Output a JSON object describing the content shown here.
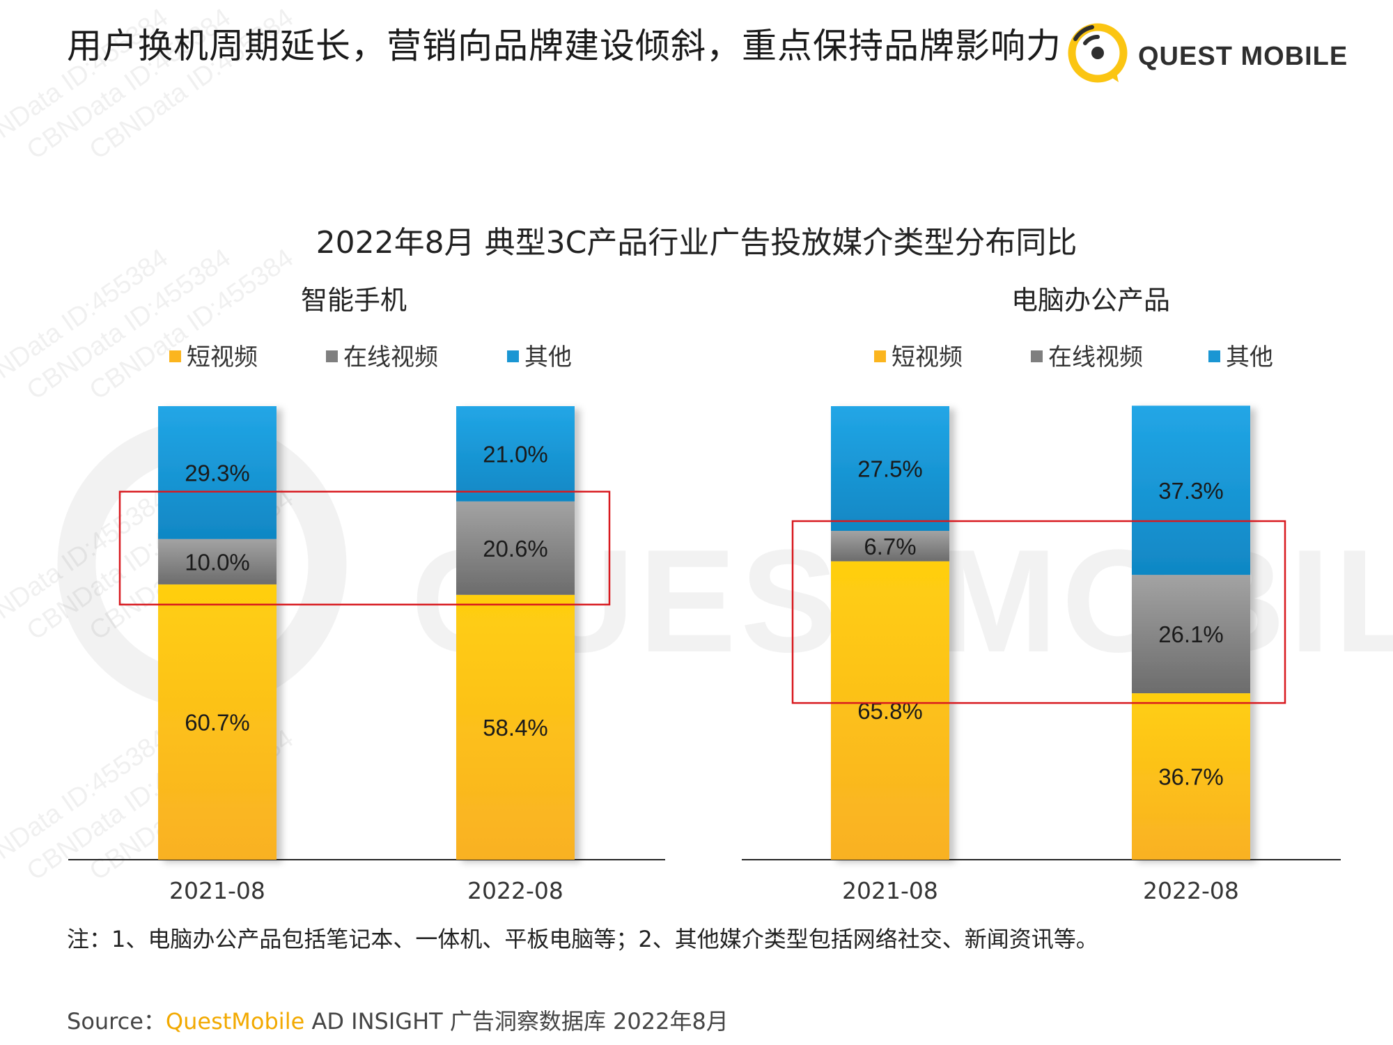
{
  "headline": "用户换机周期延长，营销向品牌建设倾斜，重点保持品牌影响力",
  "logo": {
    "text": "QUEST MOBILE",
    "watermark_text": "QUESTMOBILE",
    "tile_text": "CBNData ID:455384"
  },
  "colors": {
    "short_video": "#fbb51e",
    "online_video": "#7f7f7f",
    "other": "#1a96d3",
    "highlight_box": "#d8181e",
    "axis": "#222222"
  },
  "chart_title": "2022年8月 典型3C产品行业广告投放媒介类型分布同比",
  "legend": [
    "短视频",
    "在线视频",
    "其他"
  ],
  "chart_data": [
    {
      "type": "bar",
      "stacked": true,
      "title": "智能手机",
      "categories": [
        "2021-08",
        "2022-08"
      ],
      "series": [
        {
          "name": "短视频",
          "values": [
            60.7,
            58.4
          ]
        },
        {
          "name": "在线视频",
          "values": [
            10.0,
            20.6
          ]
        },
        {
          "name": "其他",
          "values": [
            29.3,
            21.0
          ]
        }
      ],
      "labels": [
        [
          "60.7%",
          "58.4%"
        ],
        [
          "10.0%",
          "20.6%"
        ],
        [
          "29.3%",
          "21.0%"
        ]
      ],
      "ylim": [
        0,
        100
      ],
      "grid": false,
      "legend_position": "top",
      "highlighted_series": "在线视频"
    },
    {
      "type": "bar",
      "stacked": true,
      "title": "电脑办公产品",
      "categories": [
        "2021-08",
        "2022-08"
      ],
      "series": [
        {
          "name": "短视频",
          "values": [
            65.8,
            36.7
          ]
        },
        {
          "name": "在线视频",
          "values": [
            6.7,
            26.1
          ]
        },
        {
          "name": "其他",
          "values": [
            27.5,
            37.3
          ]
        }
      ],
      "labels": [
        [
          "65.8%",
          "36.7%"
        ],
        [
          "6.7%",
          "26.1%"
        ],
        [
          "27.5%",
          "37.3%"
        ]
      ],
      "ylim": [
        0,
        100
      ],
      "grid": false,
      "legend_position": "top",
      "highlighted_series": "在线视频"
    }
  ],
  "note": "注：1、电脑办公产品包括笔记本、一体机、平板电脑等；2、其他媒介类型包括网络社交、新闻资讯等。",
  "source": {
    "prefix": "Source：",
    "brand": "QuestMobile",
    "rest": " AD INSIGHT 广告洞察数据库 2022年8月"
  }
}
